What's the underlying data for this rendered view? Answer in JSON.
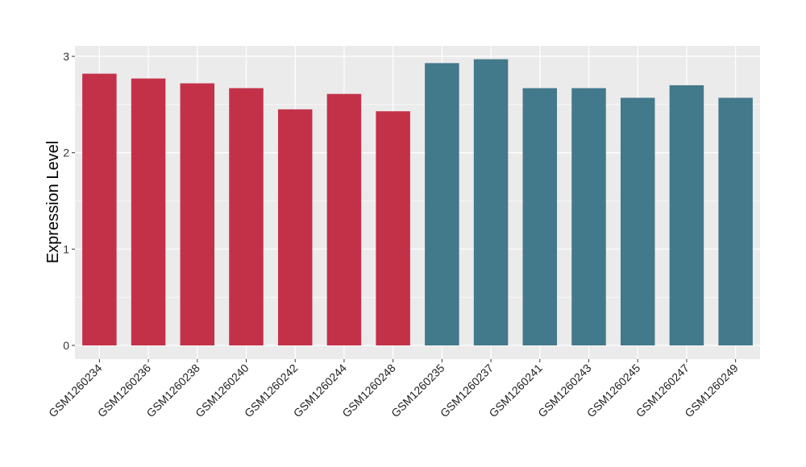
{
  "chart_data": {
    "type": "bar",
    "title": "",
    "xlabel": "",
    "ylabel": "Expression Level",
    "ylim": [
      0,
      3.1
    ],
    "yticks": [
      0,
      1,
      2,
      3
    ],
    "grid": true,
    "categories": [
      "GSM1260234",
      "GSM1260236",
      "GSM1260238",
      "GSM1260240",
      "GSM1260242",
      "GSM1260244",
      "GSM1260248",
      "GSM1260235",
      "GSM1260237",
      "GSM1260241",
      "GSM1260243",
      "GSM1260245",
      "GSM1260247",
      "GSM1260249"
    ],
    "values": [
      2.82,
      2.77,
      2.72,
      2.67,
      2.45,
      2.61,
      2.43,
      2.93,
      2.97,
      2.67,
      2.67,
      2.57,
      2.7,
      2.57
    ],
    "groups": [
      0,
      0,
      0,
      0,
      0,
      0,
      0,
      1,
      1,
      1,
      1,
      1,
      1,
      1
    ],
    "group_colors": [
      "#c33149",
      "#42798b"
    ],
    "panel_color": "#ebebeb"
  }
}
